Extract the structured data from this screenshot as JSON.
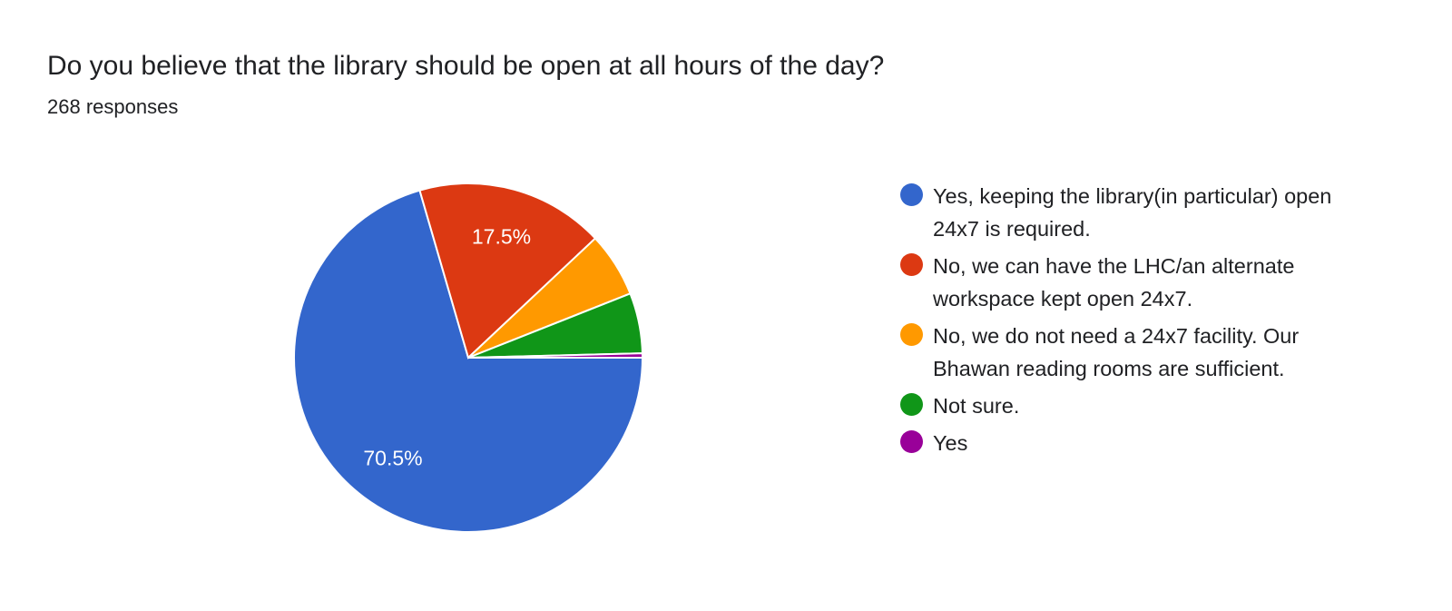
{
  "title": "Do you believe that the library should be open at all hours of the day?",
  "subtitle": "268 responses",
  "chart_data": {
    "type": "pie",
    "title": "Do you believe that the library should be open at all hours of the day?",
    "total_responses": 268,
    "legend_position": "right",
    "slices": [
      {
        "label": "Yes, keeping the library(in particular) open 24x7 is required.",
        "percent": 70.5,
        "color": "#3366cc",
        "data_label": "70.5%"
      },
      {
        "label": "No, we can have the LHC/an alternate workspace kept open 24x7.",
        "percent": 17.5,
        "color": "#dc3912",
        "data_label": "17.5%"
      },
      {
        "label": "No, we do not need a 24x7 facility. Our Bhawan reading rooms are sufficient.",
        "percent": 6.0,
        "color": "#ff9900"
      },
      {
        "label": "Not sure.",
        "percent": 5.6,
        "color": "#109618"
      },
      {
        "label": "Yes",
        "percent": 0.4,
        "color": "#990099"
      }
    ]
  }
}
